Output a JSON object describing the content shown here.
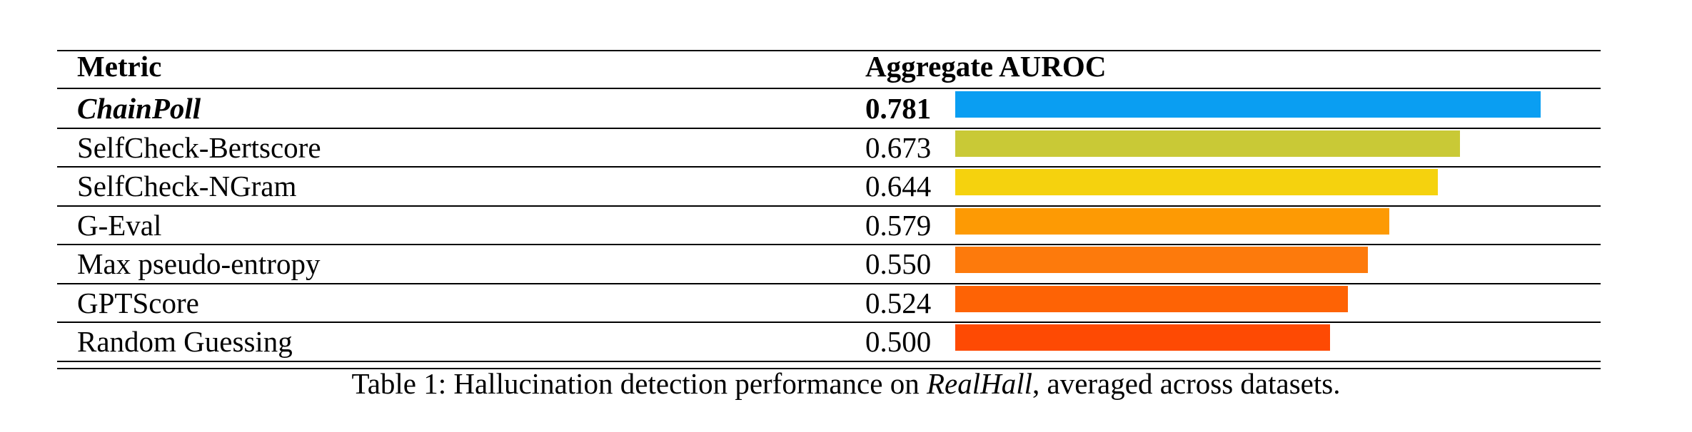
{
  "table": {
    "header": {
      "metric": "Metric",
      "score": "Aggregate AUROC"
    },
    "rows": [
      {
        "metric": "ChainPoll",
        "score": "0.781",
        "value": 0.781,
        "color": "#0a9ef2",
        "style": "bold-italic"
      },
      {
        "metric": "SelfCheck-Bertscore",
        "score": "0.673",
        "value": 0.673,
        "color": "#c9c936",
        "style": "normal"
      },
      {
        "metric": "SelfCheck-NGram",
        "score": "0.644",
        "value": 0.644,
        "color": "#f5d20e",
        "style": "normal"
      },
      {
        "metric": "G-Eval",
        "score": "0.579",
        "value": 0.579,
        "color": "#fd9a04",
        "style": "normal"
      },
      {
        "metric": "Max pseudo-entropy",
        "score": "0.550",
        "value": 0.55,
        "color": "#fd7a0c",
        "style": "normal"
      },
      {
        "metric": "GPTScore",
        "score": "0.524",
        "value": 0.524,
        "color": "#fe6305",
        "style": "normal"
      },
      {
        "metric": "Random Guessing",
        "score": "0.500",
        "value": 0.5,
        "color": "#fe4a03",
        "style": "normal"
      }
    ]
  },
  "caption": {
    "prefix": "Table 1: Hallucination detection performance on ",
    "emphasis": "RealHall",
    "suffix": ", averaged across datasets."
  }
}
